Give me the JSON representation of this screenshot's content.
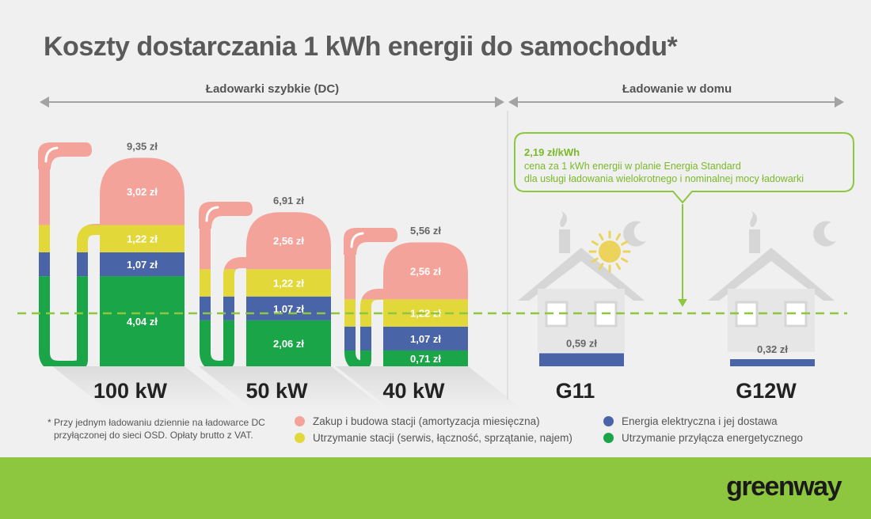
{
  "title": "Koszty dostarczania 1 kWh energii do samochodu*",
  "sections": {
    "dc": "Ładowarki szybkie (DC)",
    "home": "Ładowanie w domu"
  },
  "callout": {
    "price": "2,19 zł/kWh",
    "line1": "cena za 1 kWh energii w planie Energia Standard",
    "line2": "dla usługi ładowania wielokrotnego i nominalnej mocy ładowarki"
  },
  "footnote": {
    "line1": "* Przy jednym ładowaniu dziennie na ładowarce DC",
    "line2": "przyłączonej do sieci OSD. Opłaty brutto z VAT."
  },
  "legend": [
    {
      "label": "Zakup i budowa stacji (amortyzacja miesięczna)",
      "color": "#f4a39b"
    },
    {
      "label": "Utrzymanie stacji (serwis, łączność, sprzątanie, najem)",
      "color": "#e3d83a"
    },
    {
      "label": "Energia elektryczna i jej dostawa",
      "color": "#4a64a8"
    },
    {
      "label": "Utrzymanie przyłącza energetycznego",
      "color": "#1aa548"
    }
  ],
  "brand": "greenway",
  "chart_data": {
    "type": "bar",
    "stacked": true,
    "unit": "zł",
    "categories": [
      "100 kW",
      "50 kW",
      "40 kW",
      "G11",
      "G12W"
    ],
    "totals": [
      "9,35 zł",
      "6,91 zł",
      "5,56 zł",
      null,
      null
    ],
    "series": [
      {
        "name": "Utrzymanie przyłącza energetycznego",
        "color": "#1aa548",
        "values": [
          4.04,
          2.06,
          0.71,
          0,
          0
        ],
        "labels": [
          "4,04 zł",
          "2,06 zł",
          "0,71 zł",
          "",
          ""
        ]
      },
      {
        "name": "Energia elektryczna i jej dostawa",
        "color": "#4a64a8",
        "values": [
          1.07,
          1.07,
          1.07,
          0.59,
          0.32
        ],
        "labels": [
          "1,07 zł",
          "1,07 zł",
          "1,07 zł",
          "0,59 zł",
          "0,32 zł"
        ]
      },
      {
        "name": "Utrzymanie stacji (serwis, łączność, sprzątanie, najem)",
        "color": "#e3d83a",
        "values": [
          1.22,
          1.22,
          1.22,
          0,
          0
        ],
        "labels": [
          "1,22 zł",
          "1,22 zł",
          "1,22 zł",
          "",
          ""
        ]
      },
      {
        "name": "Zakup i budowa stacji (amortyzacja miesięczna)",
        "color": "#f4a39b",
        "values": [
          3.02,
          2.56,
          2.56,
          0,
          0
        ],
        "labels": [
          "3,02 zł",
          "2,56 zł",
          "2,56 zł",
          "",
          ""
        ]
      }
    ],
    "reference_line": {
      "value": 2.19,
      "style": "dashed",
      "color": "#8dc63f"
    },
    "grid": false,
    "legend_position": "bottom"
  }
}
